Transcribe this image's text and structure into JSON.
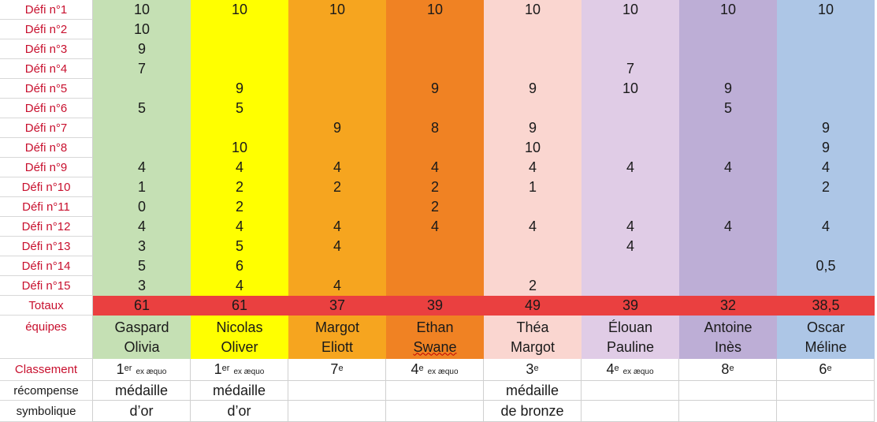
{
  "challenges": [
    {
      "label": "Défi n°1",
      "values": [
        "10",
        "10",
        "10",
        "10",
        "10",
        "10",
        "10",
        "10"
      ]
    },
    {
      "label": "Défi n°2",
      "values": [
        "10",
        "",
        "",
        "",
        "",
        "",
        "",
        ""
      ]
    },
    {
      "label": "Défi n°3",
      "values": [
        "9",
        "",
        "",
        "",
        "",
        "",
        "",
        ""
      ]
    },
    {
      "label": "Défi n°4",
      "values": [
        "7",
        "",
        "",
        "",
        "",
        "7",
        "",
        ""
      ]
    },
    {
      "label": "Défi n°5",
      "values": [
        "",
        "9",
        "",
        "9",
        "9",
        "10",
        "9",
        ""
      ]
    },
    {
      "label": "Défi n°6",
      "values": [
        "5",
        "5",
        "",
        "",
        "",
        "",
        "5",
        ""
      ]
    },
    {
      "label": "Défi n°7",
      "values": [
        "",
        "",
        "9",
        "8",
        "9",
        "",
        "",
        "9"
      ]
    },
    {
      "label": "Défi n°8",
      "values": [
        "",
        "10",
        "",
        "",
        "10",
        "",
        "",
        "9"
      ]
    },
    {
      "label": "Défi n°9",
      "values": [
        "4",
        "4",
        "4",
        "4",
        "4",
        "4",
        "4",
        "4"
      ]
    },
    {
      "label": "Défi n°10",
      "values": [
        "1",
        "2",
        "2",
        "2",
        "1",
        "",
        "",
        "2"
      ]
    },
    {
      "label": "Défi n°11",
      "values": [
        "0",
        "2",
        "",
        "2",
        "",
        "",
        "",
        ""
      ]
    },
    {
      "label": "Défi n°12",
      "values": [
        "4",
        "4",
        "4",
        "4",
        "4",
        "4",
        "4",
        "4"
      ]
    },
    {
      "label": "Défi n°13",
      "values": [
        "3",
        "5",
        "4",
        "",
        "",
        "4",
        "",
        ""
      ]
    },
    {
      "label": "Défi n°14",
      "values": [
        "5",
        "6",
        "",
        "",
        "",
        "",
        "",
        "0,5"
      ]
    },
    {
      "label": "Défi n°15",
      "values": [
        "3",
        "4",
        "4",
        "",
        "2",
        "",
        "",
        ""
      ]
    }
  ],
  "totals": {
    "label": "Totaux",
    "values": [
      "61",
      "61",
      "37",
      "39",
      "49",
      "39",
      "32",
      "38,5"
    ]
  },
  "teams": {
    "label": "équipes",
    "members": [
      [
        "Gaspard",
        "Olivia"
      ],
      [
        "Nicolas",
        "Oliver"
      ],
      [
        "Margot",
        "Eliott"
      ],
      [
        "Ethan",
        "Swane"
      ],
      [
        "Théa",
        "Margot"
      ],
      [
        "Élouan",
        "Pauline"
      ],
      [
        "Antoine",
        "Inès"
      ],
      [
        "Oscar",
        "Méline"
      ]
    ]
  },
  "ranking": {
    "label": "Classement",
    "entries": [
      {
        "num": "1",
        "sup": "er",
        "note": "ex æquo"
      },
      {
        "num": "1",
        "sup": "er",
        "note": "ex æquo"
      },
      {
        "num": "7",
        "sup": "e",
        "note": ""
      },
      {
        "num": "4",
        "sup": "e",
        "note": "ex æquo"
      },
      {
        "num": "3",
        "sup": "e",
        "note": ""
      },
      {
        "num": "4",
        "sup": "e",
        "note": "ex æquo"
      },
      {
        "num": "8",
        "sup": "e",
        "note": ""
      },
      {
        "num": "6",
        "sup": "e",
        "note": ""
      }
    ]
  },
  "reward": {
    "label1": "récompense",
    "label2": "symbolique",
    "line1": [
      "médaille",
      "médaille",
      "",
      "",
      "médaille",
      "",
      "",
      ""
    ],
    "line2": [
      "d’or",
      "d’or",
      "",
      "",
      "de bronze",
      "",
      "",
      ""
    ]
  },
  "colors": {
    "label_text": "#c8102e",
    "totals_row": "#ea4040",
    "columns": [
      "#c5e0b4",
      "#ffff00",
      "#f6a51f",
      "#f08223",
      "#fad6d0",
      "#e0cce6",
      "#bdaed6",
      "#adc6e6"
    ]
  }
}
